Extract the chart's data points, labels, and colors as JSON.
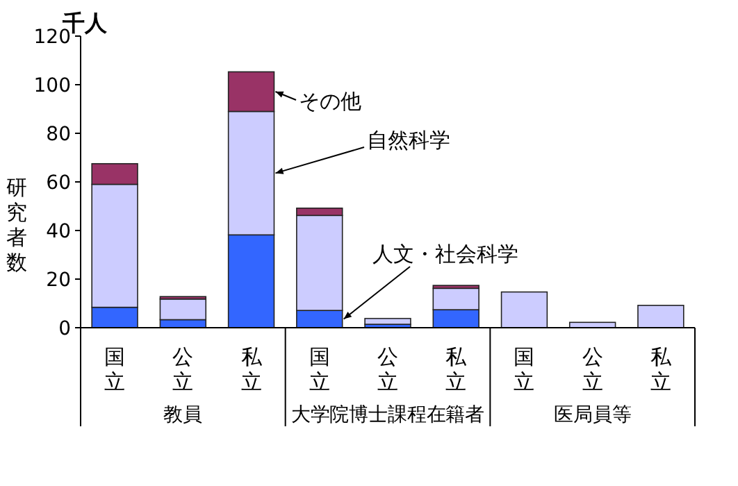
{
  "chart_data": {
    "type": "bar",
    "stacked": true,
    "subtitle": "千人",
    "ylabel": "研究者数",
    "categories": [
      "国立",
      "公立",
      "私立",
      "国立",
      "公立",
      "私立",
      "国立",
      "公立",
      "私立"
    ],
    "series": [
      {
        "name": "人文・社会科学",
        "color": "#3366ff",
        "values": [
          8.4,
          3.3,
          38.2,
          7.1,
          1.4,
          7.4,
          null,
          null,
          null
        ]
      },
      {
        "name": "自然科学",
        "color": "#ccccff",
        "values": [
          50.6,
          8.5,
          50.8,
          39.1,
          2.4,
          8.8,
          14.7,
          2.2,
          9.2
        ]
      },
      {
        "name": "その他",
        "color": "#993366",
        "values": [
          8.5,
          1.0,
          16.3,
          3.0,
          null,
          1.2,
          null,
          null,
          null
        ]
      }
    ],
    "ylim": [
      0,
      120
    ],
    "yticks": [
      0,
      20,
      40,
      60,
      80,
      100,
      120
    ],
    "grid": false,
    "annotations": [
      "教員",
      "大学院博士課程在籍者",
      "医局員等"
    ]
  }
}
